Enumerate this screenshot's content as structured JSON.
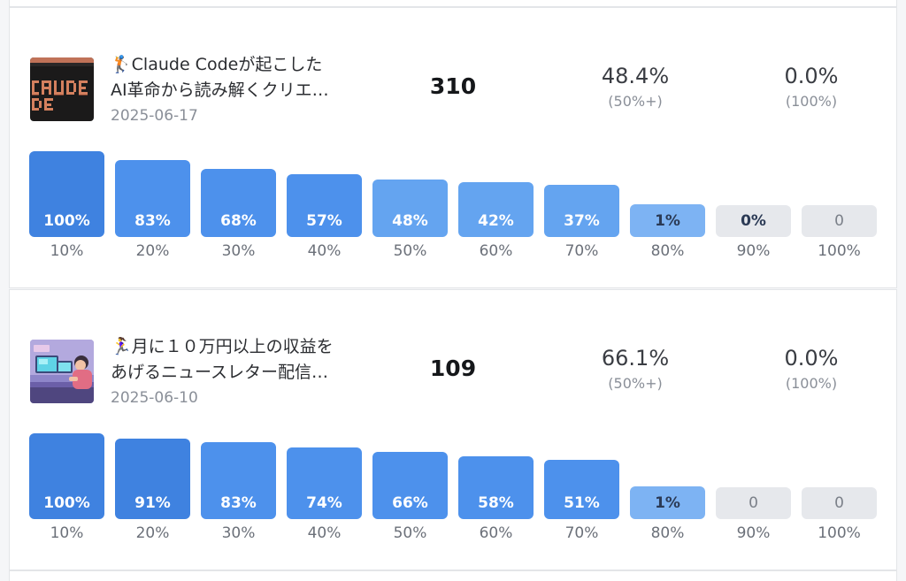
{
  "posts": [
    {
      "thumbnail_icon": "claude-code-pixel-logo",
      "title_line1": "🏌️Claude Codeが起こした",
      "title_line2": "AI革命から読み解くクリエ…",
      "date": "2025-06-17",
      "count": "310",
      "metric_primary": {
        "value": "48.4%",
        "sub": "(50%+)"
      },
      "metric_secondary": {
        "value": "0.0%",
        "sub": "(100%)"
      },
      "chart_data": {
        "type": "bar",
        "categories": [
          "10%",
          "20%",
          "30%",
          "40%",
          "50%",
          "60%",
          "70%",
          "80%",
          "90%",
          "100%"
        ],
        "values": [
          100,
          83,
          68,
          57,
          48,
          42,
          37,
          1,
          0,
          0
        ],
        "value_labels": [
          "100%",
          "83%",
          "68%",
          "57%",
          "48%",
          "42%",
          "37%",
          "1%",
          "0%",
          "0"
        ]
      }
    },
    {
      "thumbnail_icon": "person-at-desk-illustration",
      "title_line1": "🏃‍♀️月に１０万円以上の収益を",
      "title_line2": "あげるニュースレター配信…",
      "date": "2025-06-10",
      "count": "109",
      "metric_primary": {
        "value": "66.1%",
        "sub": "(50%+)"
      },
      "metric_secondary": {
        "value": "0.0%",
        "sub": "(100%)"
      },
      "chart_data": {
        "type": "bar",
        "categories": [
          "10%",
          "20%",
          "30%",
          "40%",
          "50%",
          "60%",
          "70%",
          "80%",
          "90%",
          "100%"
        ],
        "values": [
          100,
          91,
          83,
          74,
          66,
          58,
          51,
          1,
          0,
          0
        ],
        "value_labels": [
          "100%",
          "91%",
          "83%",
          "74%",
          "66%",
          "58%",
          "51%",
          "1%",
          "0",
          "0"
        ]
      }
    }
  ],
  "colors": {
    "bar_dark": "#3f82e0",
    "bar_mid": "#4d91ec",
    "bar_light": "#64a4f0",
    "bar_pale": "#7db3f3",
    "bar_empty": "#e6e8ec",
    "label_on_bar": "#ffffff",
    "label_dark": "#2b3a55",
    "label_empty": "#7b8089"
  }
}
